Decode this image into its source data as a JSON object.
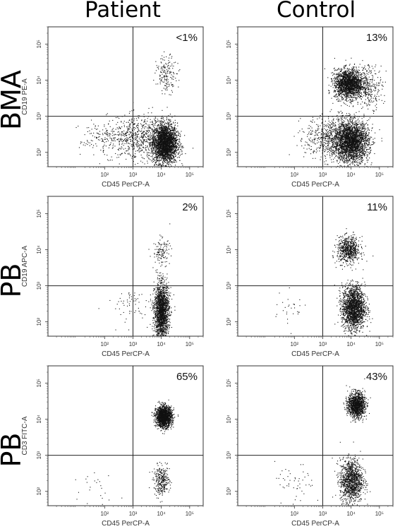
{
  "headers": {
    "col_patient": "Patient",
    "col_control": "Control",
    "row_bma": "BMA",
    "row_pb1": "PB",
    "row_pb2": "PB"
  },
  "chart_data": [
    {
      "type": "scatter",
      "row": "BMA",
      "column": "Patient",
      "xlabel": "CD45 PerCP-A",
      "ylabel": "CD19 PE-A",
      "xlim": [
        1,
        300000
      ],
      "ylim": [
        40,
        300000
      ],
      "scale": "log",
      "quadrant_x": 1000,
      "quadrant_y": 1000,
      "annotation": "<1%",
      "clusters": [
        {
          "cx": 13000,
          "cy": 180,
          "sx": 0.22,
          "sy": 0.28,
          "n": 2800
        },
        {
          "cx": 1500,
          "cy": 250,
          "sx": 0.45,
          "sy": 0.3,
          "n": 550
        },
        {
          "cx": 100,
          "cy": 250,
          "sx": 0.45,
          "sy": 0.25,
          "n": 180
        },
        {
          "cx": 15000,
          "cy": 15000,
          "sx": 0.18,
          "sy": 0.25,
          "n": 170
        }
      ],
      "x_ticks": [
        "10²",
        "10³",
        "10⁴",
        "10⁵"
      ],
      "y_ticks": [
        "10²",
        "10³",
        "10⁴",
        "10⁵"
      ]
    },
    {
      "type": "scatter",
      "row": "BMA",
      "column": "Control",
      "xlabel": "CD45 PerCP-A",
      "ylabel": "",
      "xlim": [
        1,
        300000
      ],
      "ylim": [
        40,
        300000
      ],
      "scale": "log",
      "quadrant_x": 1000,
      "quadrant_y": 1000,
      "annotation": "13%",
      "clusters": [
        {
          "cx": 10000,
          "cy": 200,
          "sx": 0.3,
          "sy": 0.28,
          "n": 2600
        },
        {
          "cx": 2000,
          "cy": 250,
          "sx": 0.45,
          "sy": 0.3,
          "n": 650
        },
        {
          "cx": 8000,
          "cy": 8000,
          "sx": 0.25,
          "sy": 0.2,
          "n": 1900
        },
        {
          "cx": 40000,
          "cy": 7000,
          "sx": 0.25,
          "sy": 0.3,
          "n": 300
        }
      ],
      "x_ticks": [
        "10²",
        "10³",
        "10⁴",
        "10⁵"
      ],
      "y_ticks": [
        "10²",
        "10³",
        "10⁴",
        "10⁵"
      ]
    },
    {
      "type": "scatter",
      "row": "PB",
      "column": "Patient",
      "xlabel": "CD45 PerCP-A",
      "ylabel": "CD19 APC-A",
      "xlim": [
        1,
        300000
      ],
      "ylim": [
        40,
        300000
      ],
      "scale": "log",
      "quadrant_x": 1000,
      "quadrant_y": 1000,
      "annotation": "2%",
      "clusters": [
        {
          "cx": 10000,
          "cy": 200,
          "sx": 0.13,
          "sy": 0.38,
          "n": 1900
        },
        {
          "cx": 10000,
          "cy": 9000,
          "sx": 0.15,
          "sy": 0.18,
          "n": 120
        },
        {
          "cx": 800,
          "cy": 300,
          "sx": 0.4,
          "sy": 0.25,
          "n": 60
        }
      ],
      "x_ticks": [
        "10²",
        "10³",
        "10⁴",
        "10⁵"
      ],
      "y_ticks": [
        "10²",
        "10³",
        "10⁴",
        "10⁵"
      ]
    },
    {
      "type": "scatter",
      "row": "PB",
      "column": "Control",
      "xlabel": "CD45 PerCP-A",
      "ylabel": "",
      "xlim": [
        1,
        300000
      ],
      "ylim": [
        40,
        300000
      ],
      "scale": "log",
      "quadrant_x": 1000,
      "quadrant_y": 1000,
      "annotation": "11%",
      "clusters": [
        {
          "cx": 12000,
          "cy": 250,
          "sx": 0.2,
          "sy": 0.3,
          "n": 1900
        },
        {
          "cx": 8000,
          "cy": 10000,
          "sx": 0.2,
          "sy": 0.18,
          "n": 700
        },
        {
          "cx": 60,
          "cy": 200,
          "sx": 0.3,
          "sy": 0.25,
          "n": 30
        }
      ],
      "x_ticks": [
        "10²",
        "10³",
        "10⁴",
        "10⁵"
      ],
      "y_ticks": [
        "10²",
        "10³",
        "10⁴",
        "10⁵"
      ]
    },
    {
      "type": "scatter",
      "row": "PB",
      "column": "Patient",
      "xlabel": "CD45 PerCP-A",
      "ylabel": "CD3 FITC-A",
      "xlim": [
        1,
        300000
      ],
      "ylim": [
        40,
        300000
      ],
      "scale": "log",
      "quadrant_x": 1000,
      "quadrant_y": 1000,
      "annotation": "65%",
      "clusters": [
        {
          "cx": 12000,
          "cy": 12000,
          "sx": 0.14,
          "sy": 0.14,
          "n": 1700
        },
        {
          "cx": 10000,
          "cy": 200,
          "sx": 0.14,
          "sy": 0.2,
          "n": 300
        },
        {
          "cx": 60,
          "cy": 150,
          "sx": 0.3,
          "sy": 0.3,
          "n": 25
        }
      ],
      "x_ticks": [
        "10²",
        "10³",
        "10⁴",
        "10⁵"
      ],
      "y_ticks": [
        "10²",
        "10³",
        "10⁴",
        "10⁵"
      ]
    },
    {
      "type": "scatter",
      "row": "PB",
      "column": "Control",
      "xlabel": "CD45 PerCP-A",
      "ylabel": "",
      "xlim": [
        1,
        300000
      ],
      "ylim": [
        40,
        300000
      ],
      "scale": "log",
      "quadrant_x": 1000,
      "quadrant_y": 1000,
      "annotation": "43%",
      "clusters": [
        {
          "cx": 15000,
          "cy": 25000,
          "sx": 0.15,
          "sy": 0.17,
          "n": 1300
        },
        {
          "cx": 10000,
          "cy": 200,
          "sx": 0.2,
          "sy": 0.3,
          "n": 1200
        },
        {
          "cx": 100,
          "cy": 150,
          "sx": 0.35,
          "sy": 0.3,
          "n": 50
        }
      ],
      "x_ticks": [
        "10²",
        "10³",
        "10⁴",
        "10⁵"
      ],
      "y_ticks": [
        "10²",
        "10³",
        "10⁴",
        "10⁵"
      ]
    }
  ]
}
